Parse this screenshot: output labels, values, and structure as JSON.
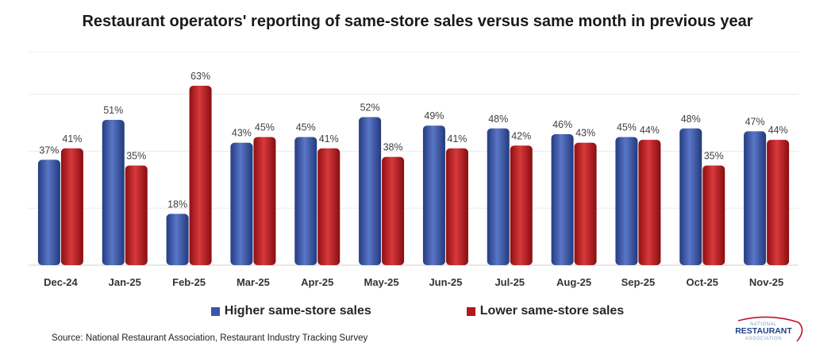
{
  "chart_data": {
    "type": "bar",
    "title": "Restaurant operators' reporting of same-store sales versus same month in previous year",
    "categories": [
      "Dec-24",
      "Jan-25",
      "Feb-25",
      "Mar-25",
      "Apr-25",
      "May-25",
      "Jun-25",
      "Jul-25",
      "Aug-25",
      "Sep-25",
      "Oct-25",
      "Nov-25"
    ],
    "series": [
      {
        "name": "Higher same-store sales",
        "color": "#3a56a8",
        "values": [
          37,
          51,
          18,
          43,
          45,
          52,
          49,
          48,
          46,
          45,
          48,
          47
        ],
        "labels": [
          "37%",
          "51%",
          "18%",
          "43%",
          "45%",
          "52%",
          "49%",
          "48%",
          "46%",
          "45%",
          "48%",
          "47%"
        ]
      },
      {
        "name": "Lower same-store sales",
        "color": "#b5181c",
        "values": [
          41,
          35,
          63,
          45,
          41,
          38,
          41,
          42,
          43,
          44,
          35,
          44
        ],
        "labels": [
          "41%",
          "35%",
          "63%",
          "45%",
          "41%",
          "38%",
          "41%",
          "42%",
          "43%",
          "44%",
          "35%",
          "44%"
        ]
      }
    ],
    "xlabel": "",
    "ylabel": "",
    "ylim": [
      0,
      60
    ],
    "grid": true,
    "legend": "bottom"
  },
  "source": "Source: National Restaurant Association, Restaurant Industry Tracking Survey",
  "logo": {
    "line1": "NATIONAL",
    "line2": "RESTAURANT",
    "line3": "ASSOCIATION"
  }
}
